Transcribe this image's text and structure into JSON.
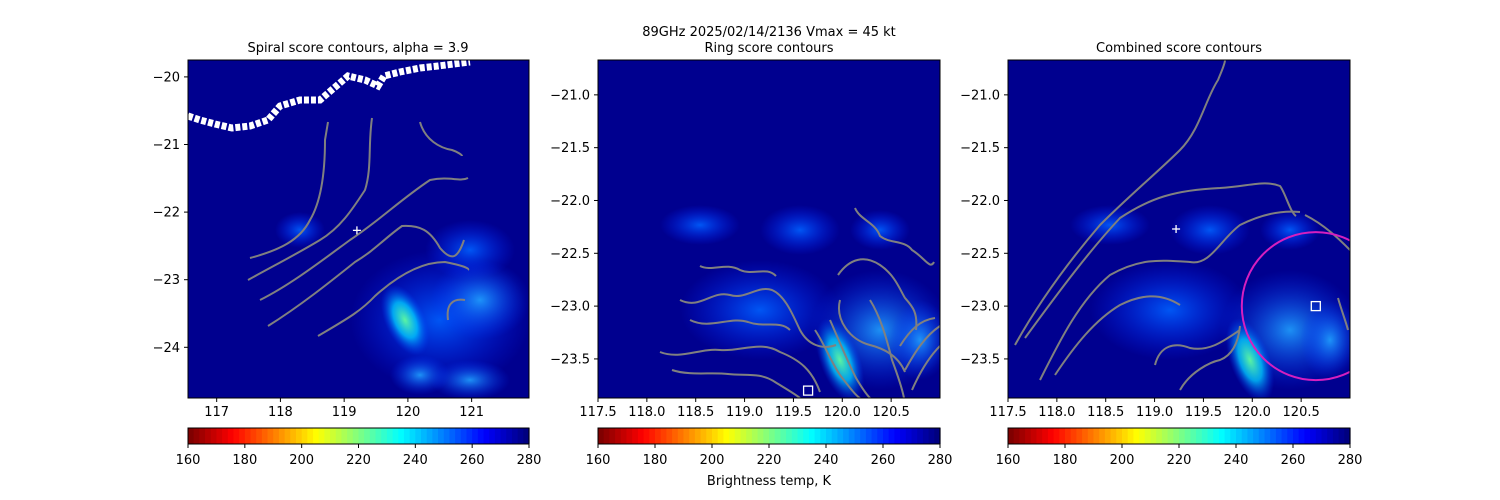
{
  "suptitle_line1": "89GHz  2025/02/14/2136    Vmax = 45 kt",
  "colormap_colors": [
    "#800000",
    "#ff0000",
    "#ff8000",
    "#ffff00",
    "#80ff80",
    "#00ffff",
    "#0080ff",
    "#0000ff",
    "#000080"
  ],
  "contour_color": "#808080",
  "circle_color": "#d61fbf",
  "chart_data": [
    {
      "type": "heatmap",
      "title": "Spiral score contours, alpha =  3.9",
      "xlim": [
        116.55,
        121.9
      ],
      "ylim": [
        -24.75,
        -19.75
      ],
      "xticks": [
        117,
        118,
        119,
        120,
        121
      ],
      "xtick_labels": [
        "117",
        "118",
        "119",
        "120",
        "121"
      ],
      "yticks": [
        -20,
        -21,
        -22,
        -23,
        -24
      ],
      "ytick_labels": [
        "−20",
        "−21",
        "−22",
        "−23",
        "−24"
      ],
      "center_marker": {
        "x": 119.2,
        "y": -22.27
      },
      "colorbar": {
        "range": [
          160,
          280
        ],
        "ticks": [
          "160",
          "180",
          "200",
          "220",
          "240",
          "260",
          "280"
        ],
        "label": ""
      }
    },
    {
      "type": "heatmap",
      "title": "Ring score contours",
      "xlim": [
        117.5,
        121.0
      ],
      "ylim": [
        -23.87,
        -20.67
      ],
      "xticks": [
        117.5,
        118.0,
        118.5,
        119.0,
        119.5,
        120.0,
        120.5
      ],
      "xtick_labels": [
        "117.5",
        "118.0",
        "118.5",
        "119.0",
        "119.5",
        "120.0",
        "120.5"
      ],
      "yticks": [
        -21.0,
        -21.5,
        -22.0,
        -22.5,
        -23.0,
        -23.5
      ],
      "ytick_labels": [
        "−21.0",
        "−21.5",
        "−22.0",
        "−22.5",
        "−23.0",
        "−23.5"
      ],
      "ring_center": {
        "x": 119.65,
        "y": -23.8
      },
      "colorbar": {
        "range": [
          160,
          280
        ],
        "ticks": [
          "160",
          "180",
          "200",
          "220",
          "240",
          "260",
          "280"
        ],
        "label": "Brightness temp, K"
      }
    },
    {
      "type": "heatmap",
      "title": "Combined score contours",
      "xlim": [
        117.5,
        121.0
      ],
      "ylim": [
        -23.87,
        -20.67
      ],
      "xticks": [
        117.5,
        118.0,
        118.5,
        119.0,
        119.5,
        120.0,
        120.5
      ],
      "xtick_labels": [
        "117.5",
        "118.0",
        "118.5",
        "119.0",
        "119.5",
        "120.0",
        "120.5"
      ],
      "yticks": [
        -21.0,
        -21.5,
        -22.0,
        -22.5,
        -23.0,
        -23.5
      ],
      "ytick_labels": [
        "−21.0",
        "−21.5",
        "−22.0",
        "−22.5",
        "−23.0",
        "−23.5"
      ],
      "center_marker": {
        "x": 119.22,
        "y": -22.27
      },
      "combined_center": {
        "x": 120.65,
        "y": -23.0
      },
      "colorbar": {
        "range": [
          160,
          280
        ],
        "ticks": [
          "160",
          "180",
          "200",
          "220",
          "240",
          "260",
          "280"
        ],
        "label": ""
      }
    }
  ]
}
